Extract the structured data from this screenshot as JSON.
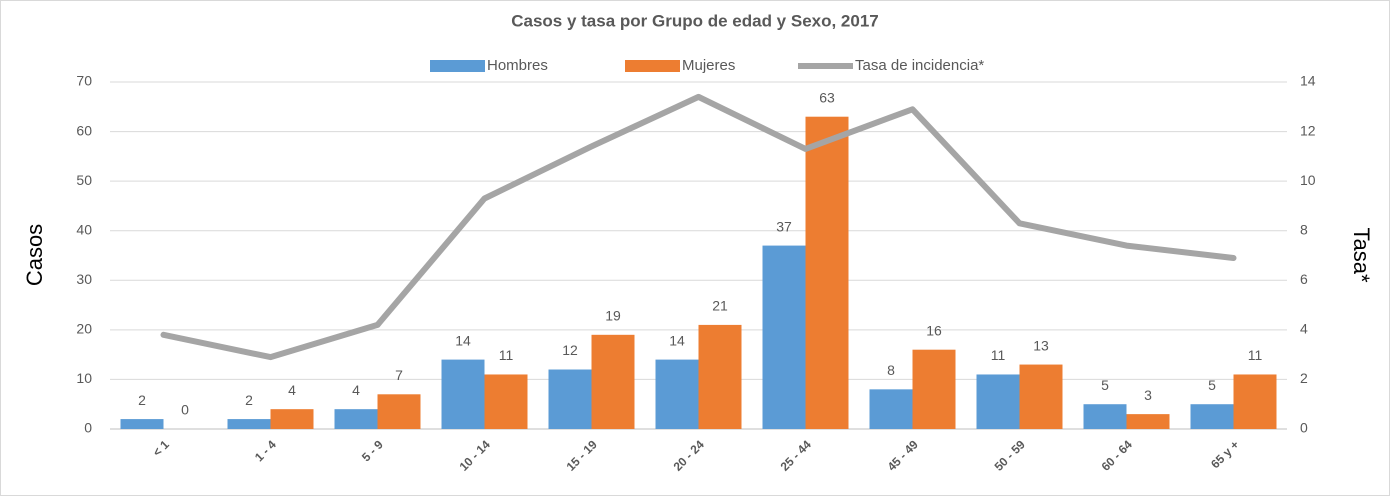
{
  "chart_data": {
    "type": "bar",
    "title": "Casos y tasa por Grupo de edad y Sexo, 2017",
    "ylabel": "Casos",
    "y2label": "Tasa*",
    "categories": [
      "< 1",
      "1 - 4",
      "5 - 9",
      "10 - 14",
      "15 - 19",
      "20 - 24",
      "25 - 44",
      "45 - 49",
      "50 - 59",
      "60 - 64",
      "65 y +"
    ],
    "series": [
      {
        "name": "Hombres",
        "color": "#5b9bd5",
        "values": [
          2,
          2,
          4,
          14,
          12,
          14,
          37,
          8,
          11,
          5,
          5
        ]
      },
      {
        "name": "Mujeres",
        "color": "#ed7d31",
        "values": [
          0,
          4,
          7,
          11,
          19,
          21,
          63,
          16,
          13,
          3,
          11
        ]
      },
      {
        "name": "Tasa de incidencia*",
        "color": "#a5a5a5",
        "type": "line",
        "axis": "y2",
        "values": [
          3.8,
          2.9,
          4.2,
          9.3,
          11.4,
          13.4,
          11.3,
          12.9,
          8.3,
          7.4,
          6.9
        ]
      }
    ],
    "ylim": [
      0,
      70
    ],
    "yticks": [
      0,
      10,
      20,
      30,
      40,
      50,
      60,
      70
    ],
    "y2lim": [
      0,
      14
    ],
    "y2ticks": [
      0,
      2,
      4,
      6,
      8,
      10,
      12,
      14
    ],
    "grid": true,
    "legend": "top"
  }
}
